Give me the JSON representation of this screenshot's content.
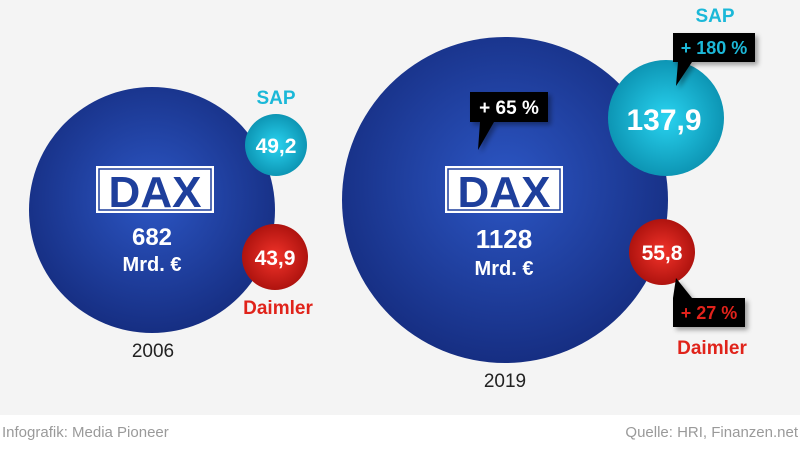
{
  "colors": {
    "dax": "#1e3f9c",
    "sap": "#1bb8d8",
    "daimler": "#e0231a",
    "callout": "#000000"
  },
  "panels": [
    {
      "year": "2006",
      "dax": {
        "logo": "DAX",
        "value": "682",
        "unit": "Mrd. €"
      },
      "sap": {
        "label": "SAP",
        "value": "49,2"
      },
      "daimler": {
        "label": "Daimler",
        "value": "43,9"
      }
    },
    {
      "year": "2019",
      "dax": {
        "logo": "DAX",
        "value": "1128",
        "unit": "Mrd. €",
        "change": "+ 65 %"
      },
      "sap": {
        "label": "SAP",
        "value": "137,9",
        "change": "+ 180 %"
      },
      "daimler": {
        "label": "Daimler",
        "value": "55,8",
        "change": "+ 27 %"
      }
    }
  ],
  "footer": {
    "credit": "Infografik: Media Pioneer",
    "source": "Quelle: HRI, Finanzen.net"
  }
}
